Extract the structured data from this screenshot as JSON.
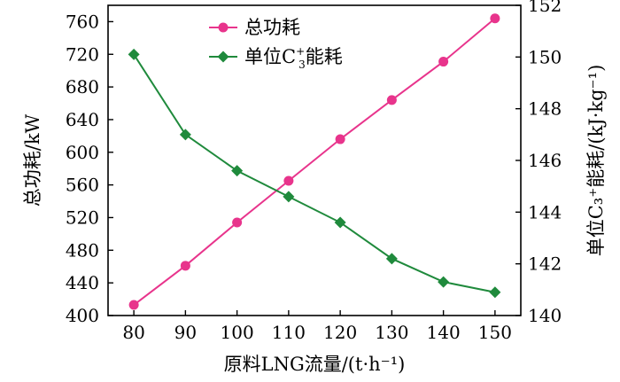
{
  "chart_data": {
    "type": "line",
    "x": [
      80,
      90,
      100,
      110,
      120,
      130,
      140,
      150
    ],
    "x_ticks": [
      "80",
      "90",
      "100",
      "110",
      "120",
      "130",
      "140",
      "150"
    ],
    "xlim": [
      75,
      155
    ],
    "xlabel": "原料LNG流量/(t·h⁻¹)",
    "ylabel_left": "总功耗/kW",
    "ylabel_right": "单位C₃⁺能耗/(kJ·kg⁻¹)",
    "ylim_left": [
      400,
      780
    ],
    "ylim_right": [
      140,
      152
    ],
    "y_ticks_left": [
      "400",
      "440",
      "480",
      "520",
      "560",
      "600",
      "640",
      "680",
      "720",
      "760"
    ],
    "y_ticks_right": [
      "140",
      "142",
      "144",
      "146",
      "148",
      "150",
      "152"
    ],
    "legend_position": "top-center",
    "grid": false,
    "series": [
      {
        "name": "总功耗",
        "axis": "left",
        "color": "#e8348c",
        "marker": "circle",
        "values": [
          413,
          461,
          514,
          565,
          616,
          664,
          711,
          764
        ]
      },
      {
        "name_parts": [
          "单位C",
          "+",
          "3",
          "能耗"
        ],
        "axis": "right",
        "color": "#1f8a3c",
        "marker": "diamond",
        "values": [
          150.1,
          147.0,
          145.6,
          144.6,
          143.6,
          142.2,
          141.3,
          140.9
        ]
      }
    ]
  }
}
